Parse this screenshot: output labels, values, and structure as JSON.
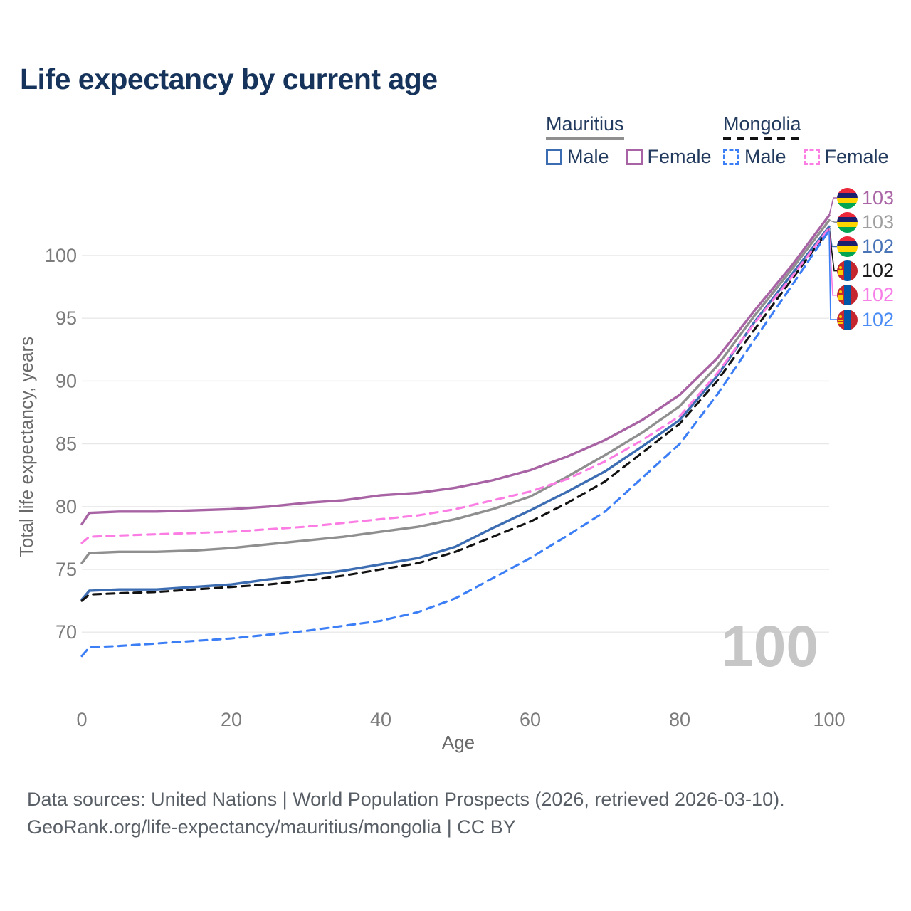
{
  "title": "Life expectancy by current age",
  "watermark": "100",
  "legend": {
    "mauritius": {
      "label": "Mauritius",
      "male": "Male",
      "female": "Female"
    },
    "mongolia": {
      "label": "Mongolia",
      "male": "Male",
      "female": "Female"
    }
  },
  "footer": {
    "line1": "Data sources: United Nations | World Population Prospects (2026, retrieved 2026-03-10).",
    "line2": "GeoRank.org/life-expectancy/mauritius/mongolia | CC BY"
  },
  "colors": {
    "title_text": "#16335b",
    "legend_text": "#223a5e",
    "axis_text": "#7b7b7b",
    "axis_title_text": "#6a6a6a",
    "gridline": "#e8e8e8",
    "watermark_text": "#c6c6c6",
    "footer_text": "#595f66"
  },
  "flag_colors": {
    "mauritius": [
      "#EA2839",
      "#1A206D",
      "#FFD500",
      "#00A551"
    ],
    "mongolia": {
      "red": "#C4272F",
      "blue": "#0057A8",
      "yellow": "#F9CF02"
    }
  },
  "chart_data": {
    "type": "line",
    "title": "Life expectancy by current age",
    "xlabel": "Age",
    "ylabel": "Total life expectancy, years",
    "xlim": [
      0,
      100
    ],
    "ylim": [
      66,
      104
    ],
    "x_ticks": [
      0,
      20,
      40,
      60,
      80,
      100
    ],
    "y_ticks": [
      70,
      75,
      80,
      85,
      90,
      95,
      100
    ],
    "grid": true,
    "legend_position": "top-right",
    "ages": [
      0,
      1,
      5,
      10,
      15,
      20,
      25,
      30,
      35,
      40,
      45,
      50,
      55,
      60,
      65,
      70,
      75,
      80,
      85,
      90,
      95,
      100
    ],
    "series": [
      {
        "name": "Mauritius Female",
        "country": "Mauritius",
        "sex": "Female",
        "style": "solid",
        "color": "#a763a3",
        "values": [
          78.6,
          79.5,
          79.6,
          79.6,
          79.7,
          79.8,
          80.0,
          80.3,
          80.5,
          80.9,
          81.1,
          81.5,
          82.1,
          82.9,
          84.0,
          85.3,
          86.9,
          88.9,
          91.8,
          95.6,
          99.2,
          103.2
        ]
      },
      {
        "name": "Mauritius Total",
        "country": "Mauritius",
        "sex": "Both",
        "style": "solid",
        "color": "#8f8f8f",
        "values": [
          75.5,
          76.3,
          76.4,
          76.4,
          76.5,
          76.7,
          77.0,
          77.3,
          77.6,
          78.0,
          78.4,
          79.0,
          79.8,
          80.8,
          82.4,
          84.1,
          85.9,
          88.0,
          91.2,
          95.2,
          98.9,
          102.8
        ]
      },
      {
        "name": "Mauritius Male",
        "country": "Mauritius",
        "sex": "Male",
        "style": "solid",
        "color": "#3c6db2",
        "values": [
          72.6,
          73.3,
          73.4,
          73.4,
          73.6,
          73.8,
          74.2,
          74.5,
          74.9,
          75.4,
          75.9,
          76.8,
          78.3,
          79.7,
          81.2,
          82.8,
          84.8,
          86.9,
          90.4,
          94.7,
          98.5,
          102.3
        ]
      },
      {
        "name": "Mongolia Total",
        "country": "Mongolia",
        "sex": "Both",
        "style": "dashed",
        "color": "#111111",
        "values": [
          72.5,
          73.0,
          73.1,
          73.2,
          73.4,
          73.6,
          73.8,
          74.1,
          74.5,
          75.0,
          75.5,
          76.4,
          77.6,
          78.8,
          80.3,
          82.0,
          84.3,
          86.6,
          90.0,
          94.1,
          98.1,
          102.1
        ]
      },
      {
        "name": "Mongolia Female",
        "country": "Mongolia",
        "sex": "Female",
        "style": "dashed",
        "color": "#fb7de4",
        "values": [
          77.1,
          77.6,
          77.7,
          77.8,
          77.9,
          78.0,
          78.2,
          78.4,
          78.7,
          79.0,
          79.3,
          79.8,
          80.5,
          81.2,
          82.2,
          83.6,
          85.3,
          87.2,
          90.6,
          94.6,
          98.3,
          102.2
        ]
      },
      {
        "name": "Mongolia Male",
        "country": "Mongolia",
        "sex": "Male",
        "style": "dashed",
        "color": "#3c7ef5",
        "values": [
          68.1,
          68.8,
          68.9,
          69.1,
          69.3,
          69.5,
          69.8,
          70.1,
          70.5,
          70.9,
          71.6,
          72.7,
          74.3,
          75.9,
          77.7,
          79.6,
          82.3,
          85.0,
          88.9,
          93.3,
          97.6,
          102.0
        ]
      }
    ],
    "end_labels": [
      {
        "value": "103",
        "flag": "mauritius",
        "series": "Mauritius Female",
        "color": "#a965a5"
      },
      {
        "value": "103",
        "flag": "mauritius",
        "series": "Mauritius Total",
        "color": "#9e9e9e"
      },
      {
        "value": "102",
        "flag": "mauritius",
        "series": "Mauritius Male",
        "color": "#4a74b8"
      },
      {
        "value": "102",
        "flag": "mongolia",
        "series": "Mongolia Total",
        "color": "#1a1a1a"
      },
      {
        "value": "102",
        "flag": "mongolia",
        "series": "Mongolia Female",
        "color": "#f77fe8"
      },
      {
        "value": "102",
        "flag": "mongolia",
        "series": "Mongolia Male",
        "color": "#4b8bf5"
      }
    ]
  }
}
